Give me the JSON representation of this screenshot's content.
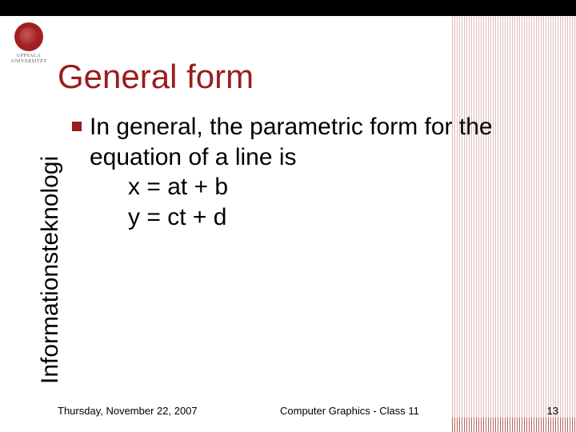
{
  "logo": {
    "top_text": "UPPSALA",
    "bottom_text": "UNIVERSITET"
  },
  "sidebar_label": "Informationsteknologi",
  "title": "General form",
  "body": {
    "line1": "In general, the parametric form for the",
    "line2": "equation of a line is",
    "line3": "x = at + b",
    "line4": "y = ct + d"
  },
  "footer": {
    "date": "Thursday, November 22, 2007",
    "center": "Computer Graphics - Class 11",
    "page": "13"
  },
  "colors": {
    "accent": "#9b1c1c",
    "black": "#000000",
    "background": "#ffffff"
  }
}
